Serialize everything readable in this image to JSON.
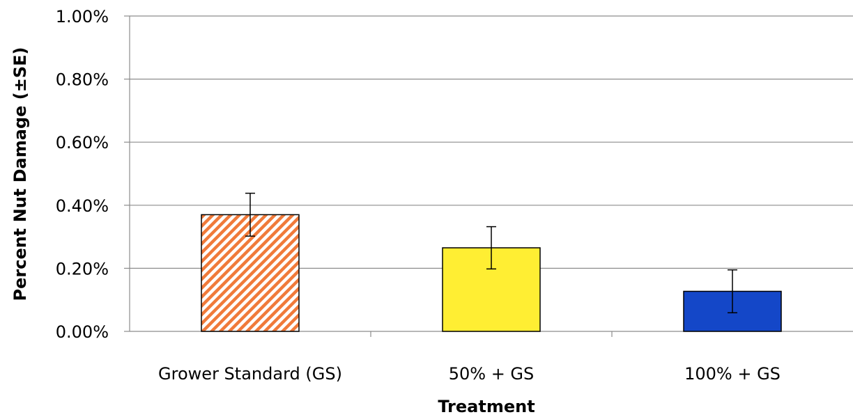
{
  "chart_data": {
    "type": "bar",
    "title": "",
    "xlabel": "Treatment",
    "ylabel": "Percent Nut Damage (±SE)",
    "ylim": [
      0,
      1.0
    ],
    "yticks": [
      0.0,
      0.2,
      0.4,
      0.6,
      0.8,
      1.0
    ],
    "ytick_labels": [
      "0.00%",
      "0.20%",
      "0.40%",
      "0.60%",
      "0.80%",
      "1.00%"
    ],
    "grid": true,
    "categories": [
      "Grower Standard (GS)",
      "50% + GS",
      "100% + GS"
    ],
    "values": [
      0.37,
      0.265,
      0.127
    ],
    "errors": [
      0.068,
      0.067,
      0.068
    ],
    "colors": [
      "#f4a36b",
      "#ffee33",
      "#1447c8"
    ],
    "hatch": [
      "diagonal-orange",
      "none",
      "none"
    ]
  }
}
